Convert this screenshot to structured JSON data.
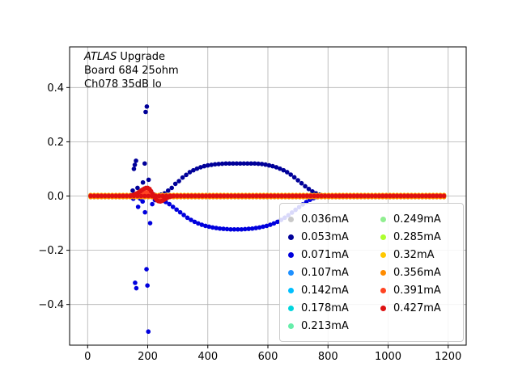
{
  "figure": {
    "annotation": {
      "line1_italic": "ATLAS",
      "line1_rest": " Upgrade",
      "line2": "Board 684 25ohm",
      "line3": "Ch078 35dB lo"
    }
  },
  "chart_data": {
    "type": "scatter",
    "title": "",
    "xlabel": "",
    "ylabel": "",
    "xlim": [
      -60,
      1260
    ],
    "ylim": [
      -0.55,
      0.55
    ],
    "x_ticks": [
      0,
      200,
      400,
      600,
      800,
      1000,
      1200
    ],
    "x_tick_labels": [
      "0",
      "200",
      "400",
      "600",
      "800",
      "1000",
      "1200"
    ],
    "y_ticks": [
      -0.4,
      -0.2,
      0.0,
      0.2,
      0.4
    ],
    "y_tick_labels": [
      "−0.4",
      "−0.2",
      "0.0",
      "0.2",
      "0.4"
    ],
    "grid": true,
    "grid_color": "#b0b0b0",
    "marker_radius": 2.8,
    "legend": {
      "position": "lower right",
      "columns": 2
    },
    "annotations": [
      "ATLAS Upgrade",
      "Board 684 25ohm",
      "Ch078 35dB lo"
    ],
    "series": [
      {
        "name": "0.036mA",
        "color": "#c9c9c9",
        "baseline": {
          "y": 0.0,
          "x_step": 12,
          "segments": [
            [
              10,
              1190
            ]
          ]
        },
        "points": []
      },
      {
        "name": "0.053mA",
        "color": "#000099",
        "baseline": {
          "y": 0.0,
          "x_step": 12,
          "segments": [
            [
              10,
              145
            ],
            [
              800,
              1190
            ]
          ]
        },
        "points": [
          [
            150,
            0.02
          ],
          [
            154,
            0.1
          ],
          [
            157,
            0.115
          ],
          [
            161,
            0.13
          ],
          [
            166,
            0.03
          ],
          [
            172,
            0.01
          ],
          [
            178,
            0.02
          ],
          [
            184,
            0.05
          ],
          [
            190,
            0.12
          ],
          [
            193,
            0.31
          ],
          [
            197,
            0.33
          ],
          [
            203,
            0.06
          ],
          [
            208,
            0.02
          ],
          [
            214,
            0.01
          ],
          [
            222,
            0.005
          ],
          [
            232,
            0.0
          ],
          [
            244,
            0.005
          ],
          [
            256,
            0.01
          ],
          [
            268,
            0.02
          ],
          [
            280,
            0.03
          ],
          [
            292,
            0.045
          ],
          [
            304,
            0.055
          ],
          [
            316,
            0.068
          ],
          [
            328,
            0.078
          ],
          [
            340,
            0.088
          ],
          [
            352,
            0.095
          ],
          [
            364,
            0.101
          ],
          [
            376,
            0.106
          ],
          [
            388,
            0.11
          ],
          [
            400,
            0.113
          ],
          [
            412,
            0.115
          ],
          [
            424,
            0.117
          ],
          [
            436,
            0.118
          ],
          [
            448,
            0.119
          ],
          [
            460,
            0.12
          ],
          [
            472,
            0.12
          ],
          [
            484,
            0.12
          ],
          [
            496,
            0.12
          ],
          [
            508,
            0.12
          ],
          [
            520,
            0.12
          ],
          [
            532,
            0.12
          ],
          [
            544,
            0.12
          ],
          [
            556,
            0.12
          ],
          [
            568,
            0.119
          ],
          [
            580,
            0.118
          ],
          [
            592,
            0.116
          ],
          [
            604,
            0.113
          ],
          [
            616,
            0.11
          ],
          [
            628,
            0.106
          ],
          [
            640,
            0.101
          ],
          [
            652,
            0.095
          ],
          [
            664,
            0.088
          ],
          [
            676,
            0.079
          ],
          [
            688,
            0.069
          ],
          [
            700,
            0.058
          ],
          [
            712,
            0.047
          ],
          [
            724,
            0.036
          ],
          [
            736,
            0.026
          ],
          [
            748,
            0.017
          ],
          [
            760,
            0.01
          ],
          [
            772,
            0.005
          ],
          [
            784,
            0.002
          ]
        ]
      },
      {
        "name": "0.071mA",
        "color": "#0000dd",
        "baseline": {
          "y": 0.0,
          "x_step": 12,
          "segments": [
            [
              10,
              145
            ],
            [
              800,
              1190
            ]
          ]
        },
        "points": [
          [
            152,
            -0.01
          ],
          [
            158,
            -0.32
          ],
          [
            162,
            -0.34
          ],
          [
            168,
            -0.04
          ],
          [
            175,
            -0.01
          ],
          [
            183,
            -0.02
          ],
          [
            191,
            -0.06
          ],
          [
            196,
            -0.27
          ],
          [
            199,
            -0.33
          ],
          [
            202,
            -0.5
          ],
          [
            208,
            -0.1
          ],
          [
            215,
            -0.03
          ],
          [
            224,
            -0.015
          ],
          [
            236,
            -0.01
          ],
          [
            248,
            -0.015
          ],
          [
            260,
            -0.022
          ],
          [
            272,
            -0.03
          ],
          [
            284,
            -0.04
          ],
          [
            296,
            -0.05
          ],
          [
            308,
            -0.06
          ],
          [
            320,
            -0.07
          ],
          [
            332,
            -0.08
          ],
          [
            344,
            -0.088
          ],
          [
            356,
            -0.095
          ],
          [
            368,
            -0.101
          ],
          [
            380,
            -0.106
          ],
          [
            392,
            -0.11
          ],
          [
            404,
            -0.113
          ],
          [
            416,
            -0.116
          ],
          [
            428,
            -0.118
          ],
          [
            440,
            -0.12
          ],
          [
            452,
            -0.121
          ],
          [
            464,
            -0.122
          ],
          [
            476,
            -0.123
          ],
          [
            488,
            -0.123
          ],
          [
            500,
            -0.123
          ],
          [
            512,
            -0.123
          ],
          [
            524,
            -0.122
          ],
          [
            536,
            -0.121
          ],
          [
            548,
            -0.12
          ],
          [
            560,
            -0.118
          ],
          [
            572,
            -0.116
          ],
          [
            584,
            -0.113
          ],
          [
            596,
            -0.11
          ],
          [
            608,
            -0.106
          ],
          [
            620,
            -0.101
          ],
          [
            632,
            -0.095
          ],
          [
            644,
            -0.088
          ],
          [
            656,
            -0.08
          ],
          [
            668,
            -0.071
          ],
          [
            680,
            -0.061
          ],
          [
            692,
            -0.051
          ],
          [
            704,
            -0.041
          ],
          [
            716,
            -0.031
          ],
          [
            728,
            -0.022
          ],
          [
            740,
            -0.014
          ],
          [
            752,
            -0.008
          ],
          [
            764,
            -0.004
          ],
          [
            776,
            -0.002
          ]
        ]
      },
      {
        "name": "0.107mA",
        "color": "#1e90ff",
        "baseline": {
          "y": 0.002,
          "x_step": 12,
          "segments": [
            [
              10,
              1190
            ]
          ]
        },
        "points": []
      },
      {
        "name": "0.142mA",
        "color": "#00bfff",
        "baseline": {
          "y": -0.002,
          "x_step": 12,
          "segments": [
            [
              10,
              1190
            ]
          ]
        },
        "points": []
      },
      {
        "name": "0.178mA",
        "color": "#00d5dd",
        "baseline": {
          "y": 0.003,
          "x_step": 12,
          "segments": [
            [
              10,
              1190
            ]
          ]
        },
        "points": []
      },
      {
        "name": "0.213mA",
        "color": "#66eeaa",
        "baseline": {
          "y": -0.003,
          "x_step": 12,
          "segments": [
            [
              10,
              1190
            ]
          ]
        },
        "points": []
      },
      {
        "name": "0.249mA",
        "color": "#90ee90",
        "baseline": {
          "y": 0.002,
          "x_step": 12,
          "segments": [
            [
              10,
              1190
            ]
          ]
        },
        "points": []
      },
      {
        "name": "0.285mA",
        "color": "#adff2f",
        "baseline": {
          "y": -0.002,
          "x_step": 12,
          "segments": [
            [
              10,
              1190
            ]
          ]
        },
        "points": []
      },
      {
        "name": "0.32mA",
        "color": "#ffc800",
        "baseline": {
          "y": 0.004,
          "x_step": 12,
          "segments": [
            [
              10,
              1190
            ]
          ]
        },
        "points": []
      },
      {
        "name": "0.356mA",
        "color": "#ff8c00",
        "baseline": {
          "y": -0.004,
          "x_step": 12,
          "segments": [
            [
              10,
              1190
            ]
          ]
        },
        "points": []
      },
      {
        "name": "0.391mA",
        "color": "#ff4422",
        "baseline": {
          "y": 0.002,
          "x_step": 12,
          "segments": [
            [
              10,
              1190
            ]
          ]
        },
        "points": [
          [
            170,
            0.005
          ],
          [
            180,
            0.01
          ],
          [
            190,
            0.014
          ],
          [
            200,
            0.015
          ],
          [
            210,
            0.008
          ],
          [
            220,
            0.0
          ],
          [
            230,
            -0.006
          ],
          [
            240,
            -0.009
          ],
          [
            250,
            -0.007
          ],
          [
            260,
            -0.004
          ]
        ]
      },
      {
        "name": "0.427mA",
        "color": "#dd1111",
        "baseline": {
          "y": 0.0,
          "x_step": 12,
          "segments": [
            [
              10,
              1190
            ]
          ]
        },
        "points": [
          [
            145,
            0.002
          ],
          [
            152,
            0.004
          ],
          [
            158,
            0.007
          ],
          [
            164,
            0.01
          ],
          [
            170,
            0.014
          ],
          [
            176,
            0.018
          ],
          [
            182,
            0.023
          ],
          [
            188,
            0.027
          ],
          [
            194,
            0.03
          ],
          [
            200,
            0.03
          ],
          [
            206,
            0.026
          ],
          [
            211,
            0.018
          ],
          [
            216,
            0.008
          ],
          [
            221,
            -0.002
          ],
          [
            226,
            -0.01
          ],
          [
            231,
            -0.016
          ],
          [
            236,
            -0.019
          ],
          [
            242,
            -0.02
          ],
          [
            248,
            -0.018
          ],
          [
            254,
            -0.014
          ],
          [
            260,
            -0.01
          ],
          [
            266,
            -0.006
          ],
          [
            272,
            -0.003
          ],
          [
            278,
            -0.001
          ]
        ]
      }
    ]
  }
}
